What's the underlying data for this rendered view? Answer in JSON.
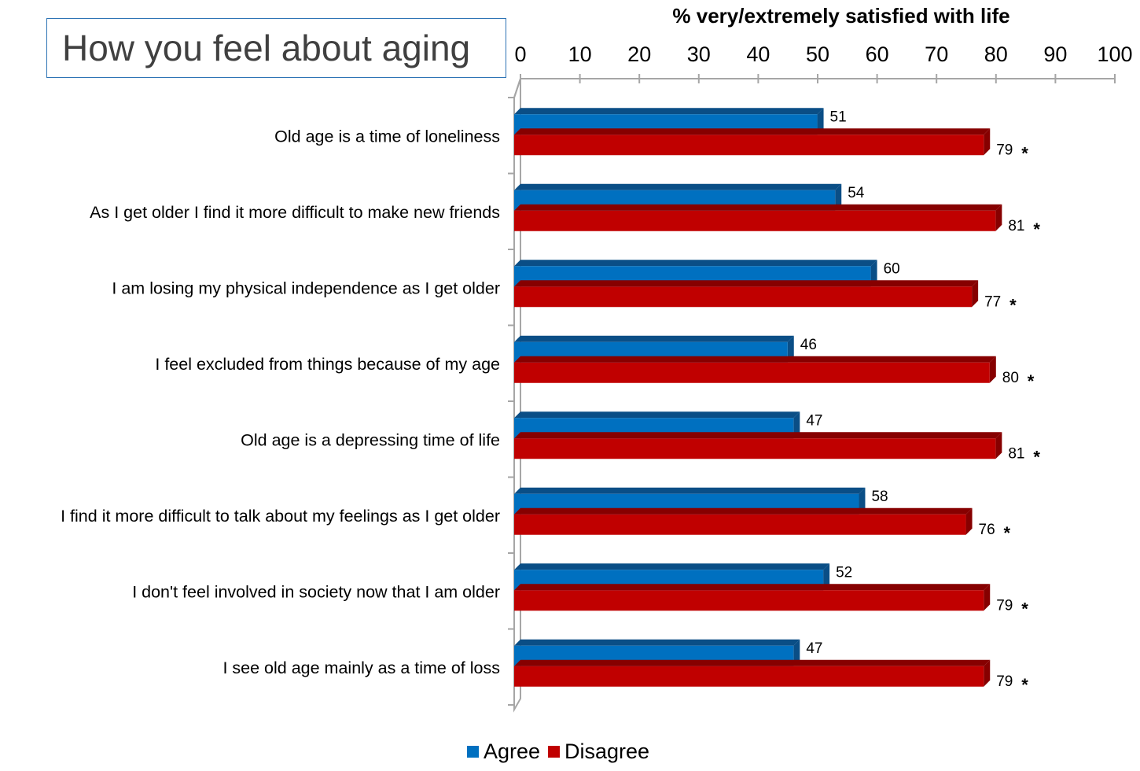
{
  "title": "How you feel about aging",
  "colors": {
    "agree": "#0070c0",
    "agree_dark": "#0a4e86",
    "disagree": "#c00000",
    "disagree_dark": "#860000",
    "axis": "#a6a6a6",
    "title_border": "#2e74b5"
  },
  "chart_data": {
    "type": "bar",
    "orientation": "horizontal",
    "xlabel": "% very/extremely satisfied with life",
    "xlim": [
      0,
      100
    ],
    "xticks": [
      0,
      10,
      20,
      30,
      40,
      50,
      60,
      70,
      80,
      90,
      100
    ],
    "axis_position": "top",
    "grid": false,
    "legend_position": "bottom",
    "categories": [
      "Old age is a time of loneliness",
      "As I get older I find it more difficult to make new friends",
      "I am losing my physical independence as I get older",
      "I feel excluded from things because of my age",
      "Old age is a depressing time of life",
      "I find it more difficult to talk about my feelings as I get older",
      "I don't feel involved in society now that I am older",
      "I see old age mainly as a time of loss"
    ],
    "series": [
      {
        "name": "Agree",
        "values": [
          51,
          54,
          60,
          46,
          47,
          58,
          52,
          47
        ]
      },
      {
        "name": "Disagree",
        "values": [
          79,
          81,
          77,
          80,
          81,
          76,
          79,
          79
        ]
      }
    ],
    "annotations": [
      "*",
      "*",
      "*",
      "*",
      "*",
      "*",
      "*",
      "*"
    ]
  }
}
